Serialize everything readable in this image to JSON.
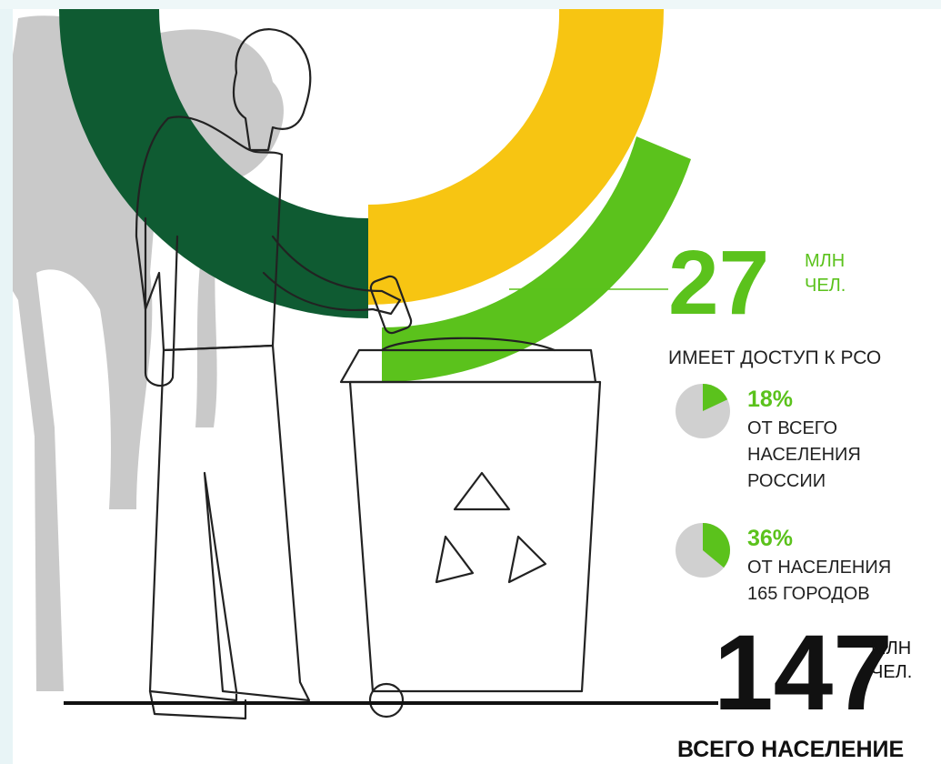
{
  "access": {
    "number": 27,
    "unit": [
      "МЛН",
      "ЧЕЛ."
    ],
    "caption": "ИМЕЕТ ДОСТУП К РСО"
  },
  "shares": [
    {
      "value": 18,
      "label": "18%",
      "lines": [
        "ОТ ВСЕГО",
        "НАСЕЛЕНИЯ",
        "РОССИИ"
      ]
    },
    {
      "value": 36,
      "label": "36%",
      "lines": [
        "ОТ НАСЕЛЕНИЯ",
        "165 ГОРОДОВ"
      ]
    }
  ],
  "total": {
    "number": 147,
    "unit": [
      "МЛН",
      "ЧЕЛ."
    ],
    "caption": "ВСЕГО НАСЕЛЕНИЕ"
  }
}
